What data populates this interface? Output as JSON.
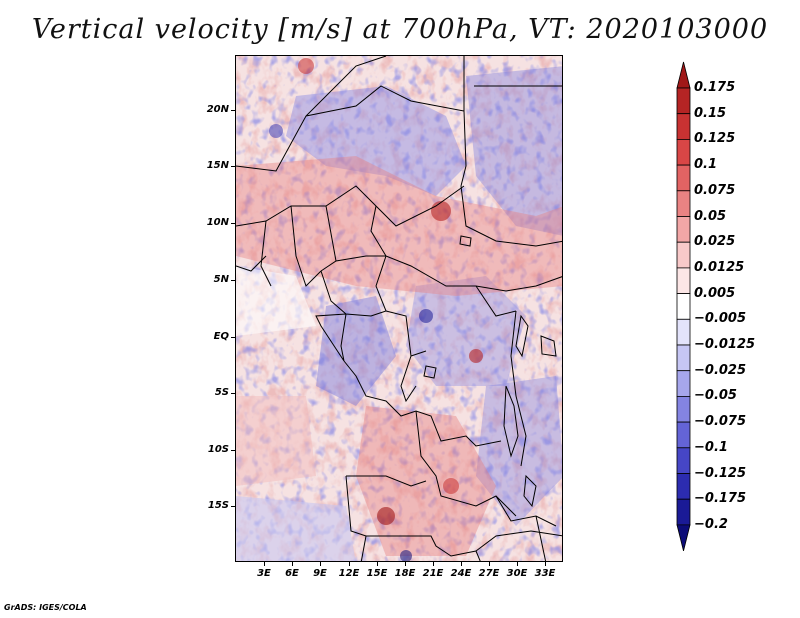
{
  "title": "Vertical velocity [m/s] at 700hPa, VT: 2020103000",
  "credit": "GrADS: IGES/COLA",
  "map": {
    "lat_labels": [
      "20N",
      "15N",
      "10N",
      "5N",
      "EQ",
      "5S",
      "10S",
      "15S"
    ],
    "lon_labels": [
      "3E",
      "6E",
      "9E",
      "12E",
      "15E",
      "18E",
      "21E",
      "24E",
      "27E",
      "30E",
      "33E"
    ]
  },
  "colorbar": {
    "levels": [
      "0.175",
      "0.15",
      "0.125",
      "0.1",
      "0.075",
      "0.05",
      "0.025",
      "0.0125",
      "0.005",
      "−0.005",
      "−0.0125",
      "−0.025",
      "−0.05",
      "−0.075",
      "−0.1",
      "−0.125",
      "−0.175",
      "−0.2"
    ],
    "colors": [
      "#a01818",
      "#b52424",
      "#c83232",
      "#d94646",
      "#e26363",
      "#ea8383",
      "#f2a6a6",
      "#f8c9c9",
      "#fce6e6",
      "#ffffff",
      "#e3e3fb",
      "#c6c6f4",
      "#a6a6ec",
      "#8484e2",
      "#6464d6",
      "#4646c6",
      "#2c2cb0",
      "#1a1a96",
      "#0c0c78"
    ]
  }
}
